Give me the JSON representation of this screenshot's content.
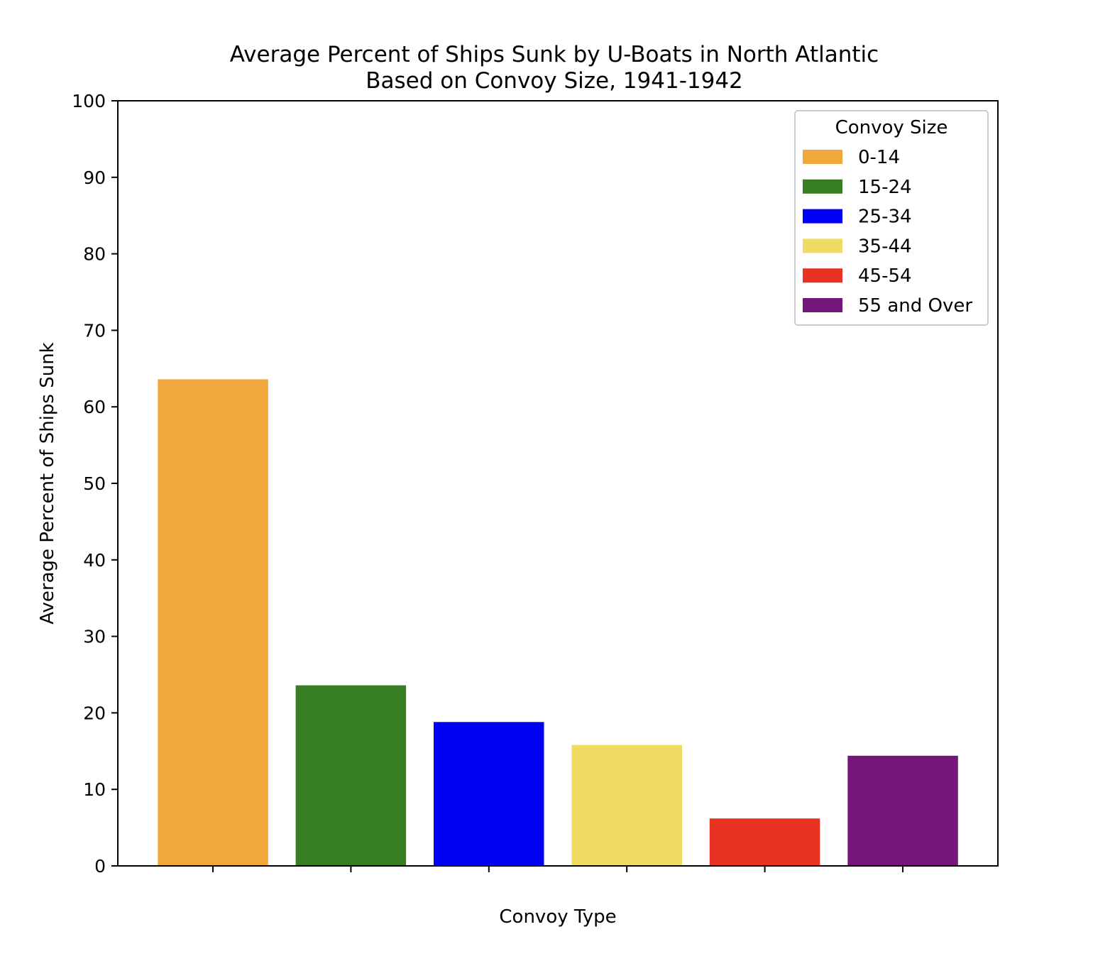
{
  "chart_data": {
    "type": "bar",
    "title": [
      "Average Percent of Ships Sunk by U-Boats in North Atlantic",
      "Based on Convoy Size, 1941-1942"
    ],
    "xlabel": "Convoy Type",
    "ylabel": "Average Percent of Ships Sunk",
    "ylim": [
      0,
      100
    ],
    "yticks": [
      0,
      10,
      20,
      30,
      40,
      50,
      60,
      70,
      80,
      90,
      100
    ],
    "x_tick_labels_shown": false,
    "grid": false,
    "categories": [
      "0-14",
      "15-24",
      "25-34",
      "35-44",
      "45-54",
      "55 and Over"
    ],
    "values": [
      63.6,
      23.6,
      18.8,
      15.8,
      6.2,
      14.4
    ],
    "colors": [
      "#f0a83c",
      "#377d21",
      "#0000f5",
      "#f0db62",
      "#e83323",
      "#74167a"
    ],
    "legend": {
      "title": "Convoy Size",
      "placement": "top-right",
      "entries": [
        "0-14",
        "15-24",
        "25-34",
        "35-44",
        "45-54",
        "55 and Over"
      ]
    }
  }
}
